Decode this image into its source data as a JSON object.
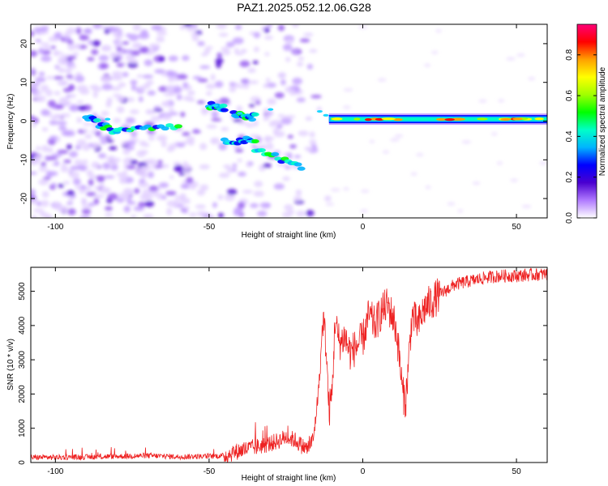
{
  "title": "PAZ1.2025.052.12.06.G28",
  "chart_data": [
    {
      "type": "heatmap",
      "xlabel": "Height of straight line (km)",
      "ylabel": "Frequency (Hz)",
      "xlim": [
        -108,
        60
      ],
      "ylim": [
        -25,
        25
      ],
      "xticks": [
        -100,
        -50,
        0,
        50
      ],
      "yticks": [
        -20,
        -10,
        0,
        10,
        20
      ],
      "colorbar": {
        "label": "Normalized spectral amplitude",
        "range": [
          0,
          0.95
        ],
        "ticks": [
          0.0,
          0.2,
          0.4,
          0.6,
          0.8
        ],
        "colors": [
          "#ffffff",
          "#b07aff",
          "#4a00d0",
          "#0000ff",
          "#00b4ff",
          "#00ffc8",
          "#00ff00",
          "#a0ff00",
          "#ffff00",
          "#ffa000",
          "#ff0000",
          "#ff0078"
        ]
      },
      "features": {
        "main_line": {
          "description_values": {
            "x_start": -11,
            "x_end": 60,
            "frequency": 0.5,
            "amplitude": 0.9
          }
        },
        "scattered_lines": [
          {
            "x": [
              -90,
              -80
            ],
            "frequency": [
              1,
              -3
            ]
          },
          {
            "x": [
              -80,
              -60
            ],
            "frequency": [
              -2,
              -1
            ]
          },
          {
            "x": [
              -50,
              -45
            ],
            "frequency": [
              4,
              3.5
            ]
          },
          {
            "x": [
              -42,
              -35
            ],
            "frequency": [
              2,
              1
            ]
          },
          {
            "x": [
              -45,
              -35
            ],
            "frequency": [
              -5,
              -5
            ]
          },
          {
            "x": [
              -35,
              -20
            ],
            "frequency": [
              -7,
              -12
            ]
          }
        ]
      }
    },
    {
      "type": "line",
      "xlabel": "Height of straight line (km)",
      "ylabel": "SNR (10 * v/v)",
      "xlim": [
        -108,
        60
      ],
      "ylim": [
        0,
        5700
      ],
      "xticks": [
        -100,
        -50,
        0,
        50
      ],
      "yticks": [
        0,
        1000,
        2000,
        3000,
        4000,
        5000
      ],
      "series": [
        {
          "color": "#ee2222",
          "x": [
            -108,
            -100,
            -90,
            -80,
            -70,
            -60,
            -50,
            -45,
            -40,
            -35,
            -30,
            -27,
            -25,
            -22,
            -20,
            -18,
            -16,
            -14,
            -13,
            -12,
            -11,
            -10,
            -9,
            -8,
            -7,
            -6,
            -4,
            -2,
            0,
            2,
            4,
            6,
            8,
            10,
            11,
            12,
            13,
            14,
            16,
            18,
            20,
            25,
            30,
            35,
            40,
            45,
            50,
            55,
            60
          ],
          "y": [
            150,
            150,
            160,
            180,
            200,
            170,
            180,
            200,
            350,
            450,
            550,
            650,
            750,
            650,
            500,
            400,
            700,
            2500,
            4200,
            3500,
            1500,
            2000,
            4200,
            3600,
            3500,
            3700,
            3200,
            3400,
            3600,
            4300,
            4000,
            4400,
            4600,
            4200,
            3800,
            3000,
            2000,
            1800,
            4300,
            4000,
            4500,
            4900,
            5200,
            5300,
            5400,
            5450,
            5450,
            5480,
            5500
          ]
        }
      ]
    }
  ]
}
